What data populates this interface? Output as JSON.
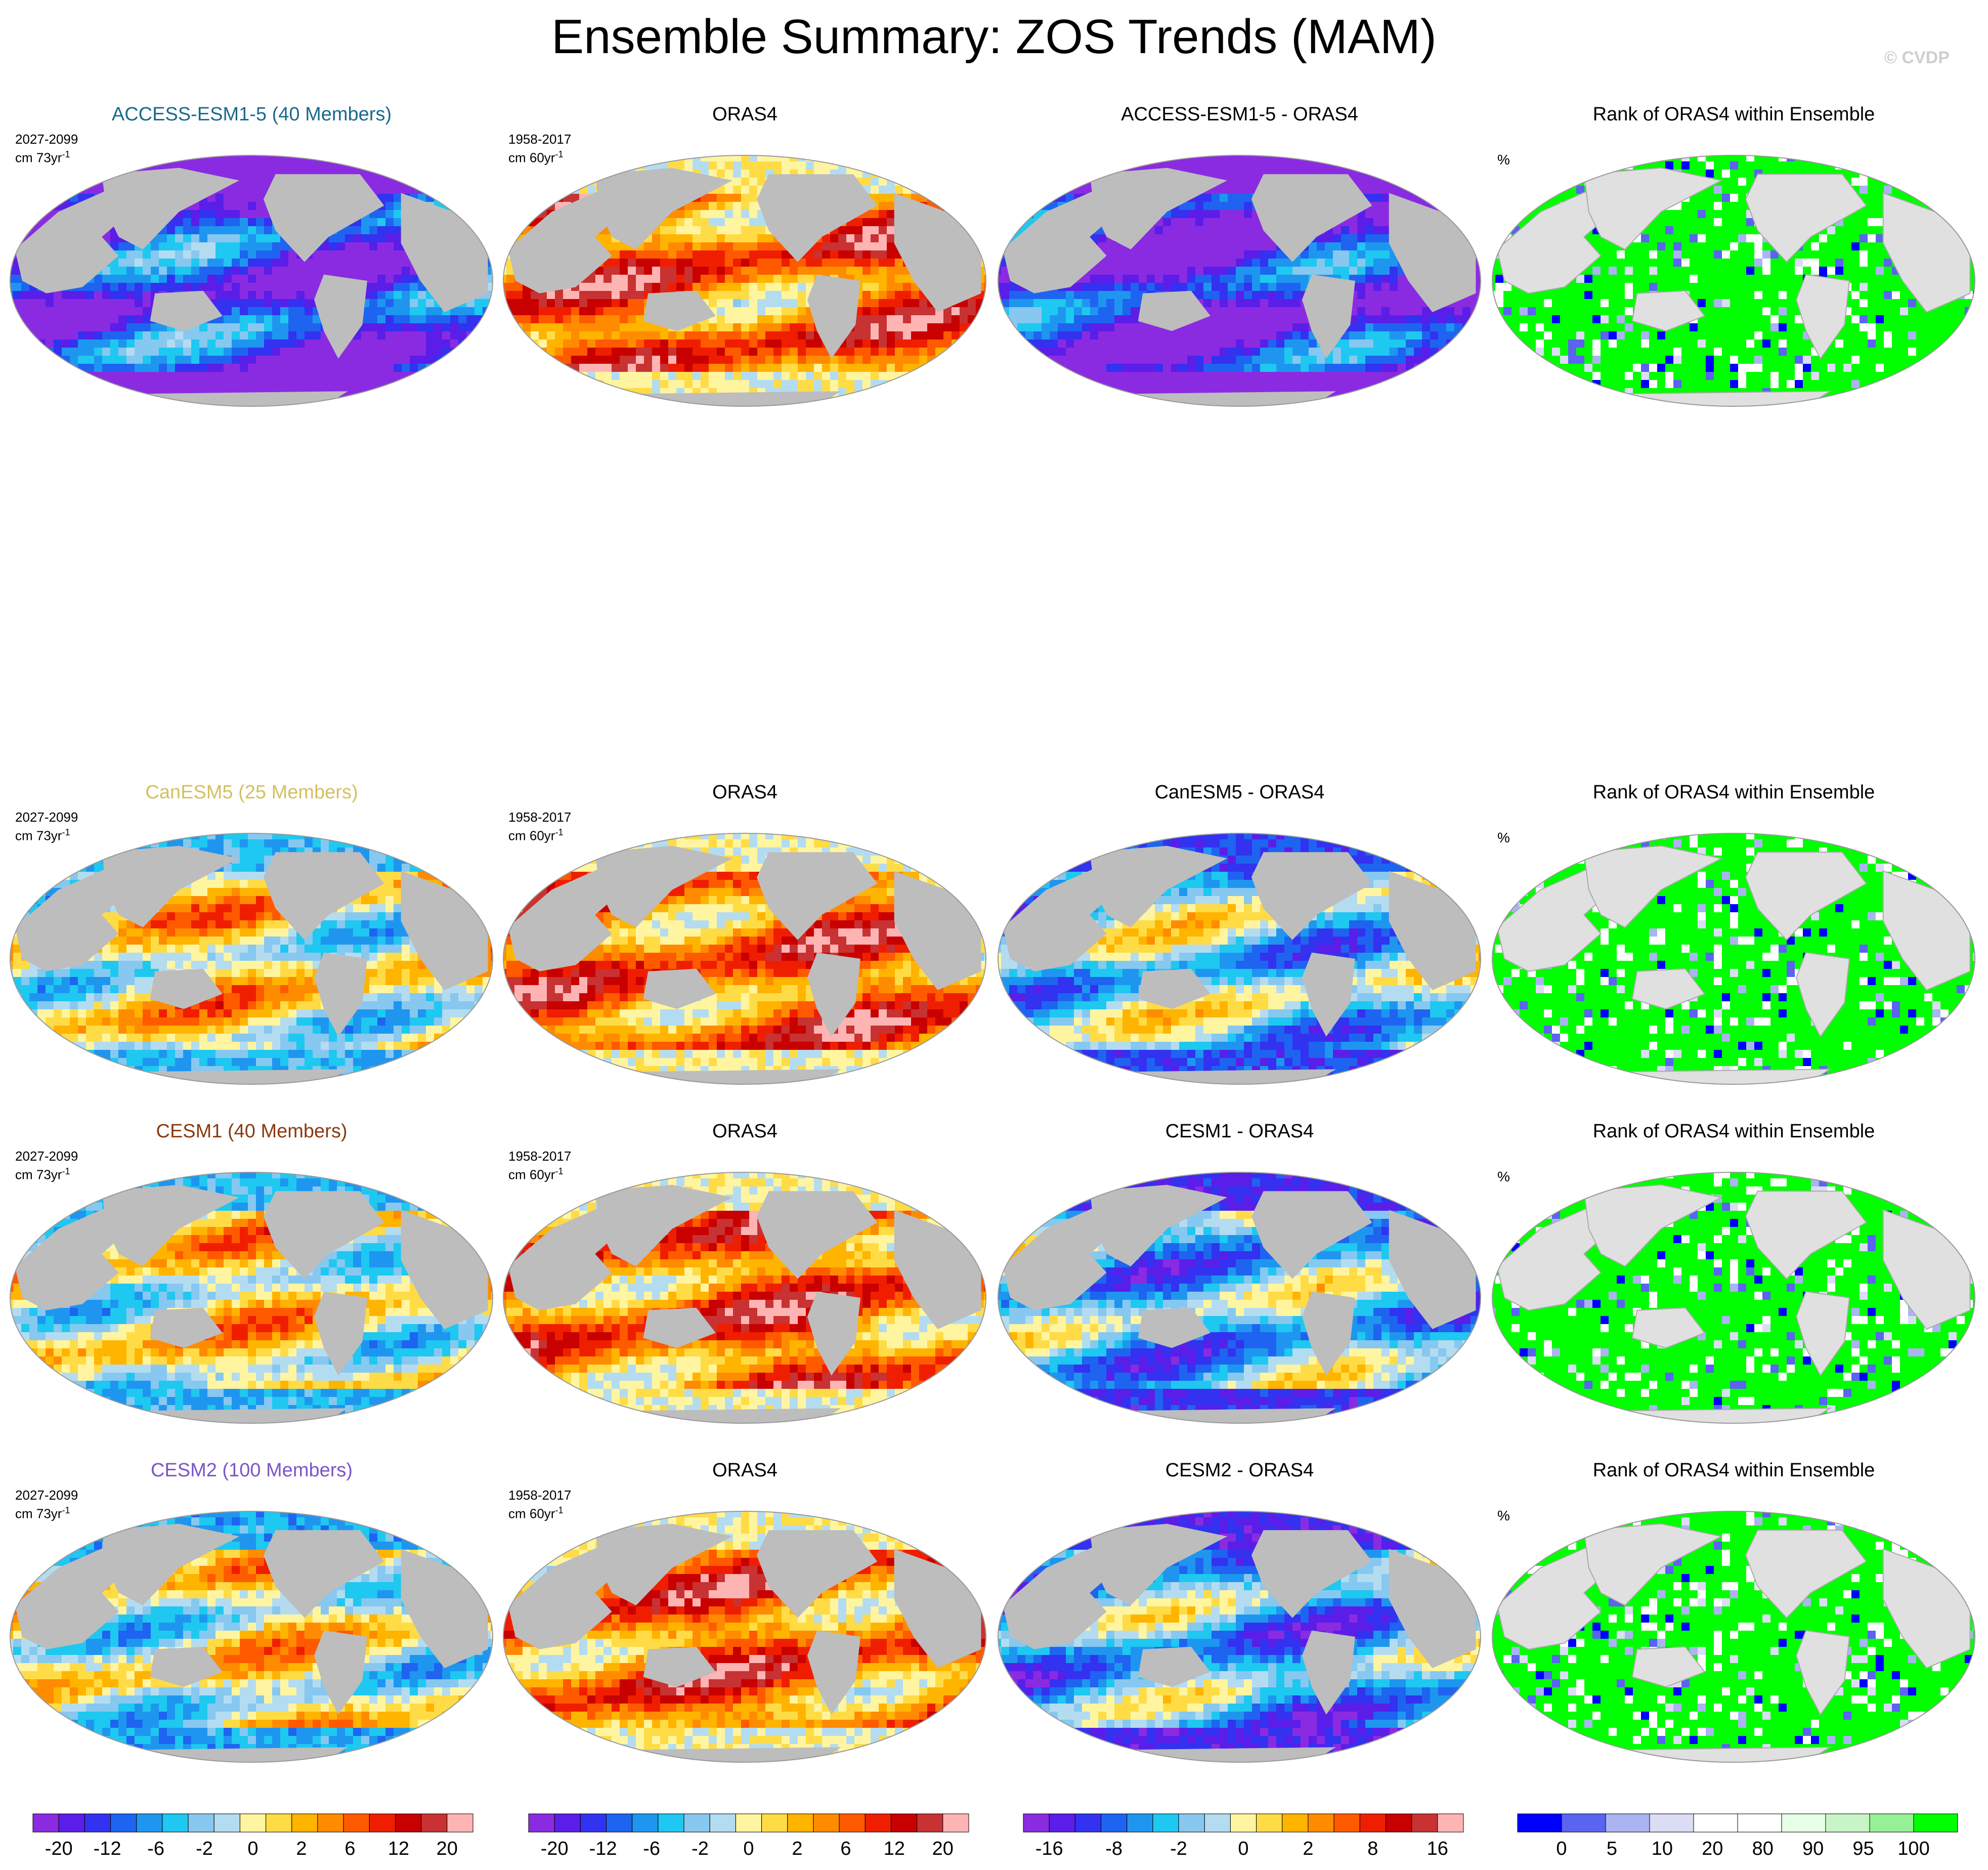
{
  "title": "Ensemble Summary: ZOS Trends (MAM)",
  "watermark": "© CVDP",
  "rank_title": "Rank of ORAS4 within Ensemble",
  "rank_unit": "%",
  "obs": {
    "name": "ORAS4",
    "period": "1958-2017",
    "units": "cm 60yr",
    "units_sup": "-1"
  },
  "models": [
    {
      "name": "ACCESS-ESM1-5 (40 Members)",
      "diff_title": "ACCESS-ESM1-5 - ORAS4",
      "period": "2027-2099",
      "units": "cm 73yr",
      "units_sup": "-1",
      "color": "#1a6a8c"
    },
    {
      "name": "CanESM5 (25 Members)",
      "diff_title": "CanESM5 - ORAS4",
      "period": "2027-2099",
      "units": "cm 73yr",
      "units_sup": "-1",
      "color": "#d4c060"
    },
    {
      "name": "CESM1 (40 Members)",
      "diff_title": "CESM1 - ORAS4",
      "period": "2027-2099",
      "units": "cm 73yr",
      "units_sup": "-1",
      "color": "#8a3a10"
    },
    {
      "name": "CESM2 (100 Members)",
      "diff_title": "CESM2 - ORAS4",
      "period": "2027-2099",
      "units": "cm 73yr",
      "units_sup": "-1",
      "color": "#7a55c8"
    }
  ],
  "colors": {
    "land": "#bdbdbd",
    "rank_land": "#e0e0e0",
    "trend_scale": [
      "#8a2be2",
      "#5a1ee8",
      "#3232f0",
      "#1e64f0",
      "#1e96f0",
      "#1ec8f0",
      "#87c8f0",
      "#b4dcf0",
      "#fff5a0",
      "#ffdc46",
      "#ffb400",
      "#ff8c00",
      "#ff5a00",
      "#f01e00",
      "#c80000",
      "#c83232",
      "#ffb4b4"
    ],
    "diff_scale": [
      "#8a2be2",
      "#5a1ee8",
      "#3232f0",
      "#1e64f0",
      "#1e96f0",
      "#1ec8f0",
      "#87c8f0",
      "#b4dcf0",
      "#fff5a0",
      "#ffdc46",
      "#ffb400",
      "#ff8c00",
      "#ff5a00",
      "#f01e00",
      "#c80000",
      "#c83232",
      "#ffb4b4"
    ],
    "rank_scale": [
      "#0000ff",
      "#5a64f0",
      "#aab4f0",
      "#dcdcf5",
      "#ffffff",
      "#ffffff",
      "#e6ffe6",
      "#c8f5c8",
      "#96f096",
      "#00ff00"
    ]
  },
  "chart_data": [
    {
      "type": "heatmap",
      "title": "ACCESS-ESM1-5 (40 Members)",
      "variable": "ZOS trend",
      "period": "2027-2099",
      "units": "cm 73yr-1",
      "dominant_range": [
        -20,
        -6
      ]
    },
    {
      "type": "heatmap",
      "title": "ORAS4",
      "variable": "ZOS trend",
      "period": "1958-2017",
      "units": "cm 60yr-1",
      "dominant_range": [
        2,
        20
      ]
    },
    {
      "type": "heatmap",
      "title": "ACCESS-ESM1-5 - ORAS4",
      "variable": "ZOS trend difference",
      "dominant_range": [
        -16,
        -8
      ]
    },
    {
      "type": "heatmap",
      "title": "Rank of ORAS4 within Ensemble",
      "units": "%",
      "dominant_value": 100
    },
    {
      "type": "heatmap",
      "title": "CanESM5 (25 Members)",
      "period": "2027-2099",
      "units": "cm 73yr-1",
      "dominant_range": [
        -6,
        20
      ]
    },
    {
      "type": "heatmap",
      "title": "CanESM5 - ORAS4",
      "dominant_range": [
        -8,
        8
      ]
    },
    {
      "type": "heatmap",
      "title": "CESM1 (40 Members)",
      "period": "2027-2099",
      "units": "cm 73yr-1",
      "dominant_range": [
        -6,
        12
      ]
    },
    {
      "type": "heatmap",
      "title": "CESM1 - ORAS4",
      "dominant_range": [
        -8,
        2
      ]
    },
    {
      "type": "heatmap",
      "title": "CESM2 (100 Members)",
      "period": "2027-2099",
      "units": "cm 73yr-1",
      "dominant_range": [
        -6,
        12
      ]
    },
    {
      "type": "heatmap",
      "title": "CESM2 - ORAS4",
      "dominant_range": [
        -8,
        2
      ]
    }
  ],
  "colorbars": [
    {
      "labels": [
        "-20",
        "-12",
        "-6",
        "-2",
        "0",
        "2",
        "6",
        "12",
        "20"
      ],
      "scale": "trend"
    },
    {
      "labels": [
        "-20",
        "-12",
        "-6",
        "-2",
        "0",
        "2",
        "6",
        "12",
        "20"
      ],
      "scale": "trend"
    },
    {
      "labels": [
        "-16",
        "-8",
        "-2",
        "0",
        "2",
        "8",
        "16"
      ],
      "scale": "diff"
    },
    {
      "labels": [
        "0",
        "5",
        "10",
        "20",
        "80",
        "90",
        "95",
        "100"
      ],
      "scale": "rank"
    }
  ]
}
